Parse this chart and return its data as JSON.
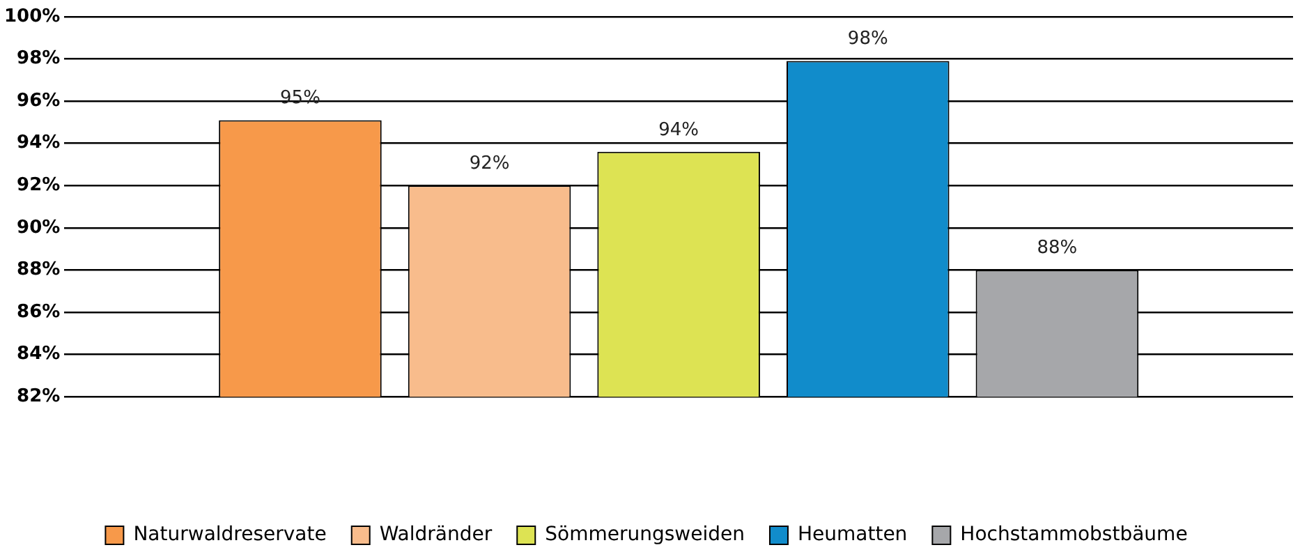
{
  "chart_data": {
    "type": "bar",
    "categories": [
      null
    ],
    "series": [
      {
        "name": "Naturwaldreservate",
        "color": "#f7994a",
        "values": [
          95.1
        ],
        "value_labels": [
          "95%"
        ]
      },
      {
        "name": "Waldränder",
        "color": "#f8bc8c",
        "values": [
          92.0
        ],
        "value_labels": [
          "92%"
        ]
      },
      {
        "name": "Sömmerungsweiden",
        "color": "#dde353",
        "values": [
          93.6
        ],
        "value_labels": [
          "94%"
        ]
      },
      {
        "name": "Heumatten",
        "color": "#118ccb",
        "values": [
          97.9
        ],
        "value_labels": [
          "98%"
        ]
      },
      {
        "name": "Hochstammobstbäume",
        "color": "#a6a7aa",
        "values": [
          88.0
        ],
        "value_labels": [
          "88%"
        ]
      }
    ],
    "ylim": [
      82,
      100
    ],
    "yticks": [
      {
        "value": 82,
        "label": "82%"
      },
      {
        "value": 84,
        "label": "84%"
      },
      {
        "value": 86,
        "label": "86%"
      },
      {
        "value": 88,
        "label": "88%"
      },
      {
        "value": 90,
        "label": "90%"
      },
      {
        "value": 92,
        "label": "92%"
      },
      {
        "value": 94,
        "label": "94%"
      },
      {
        "value": 96,
        "label": "96%"
      },
      {
        "value": 98,
        "label": "98%"
      },
      {
        "value": 100,
        "label": "100%"
      }
    ],
    "grid": "y",
    "legend": "bottom"
  }
}
